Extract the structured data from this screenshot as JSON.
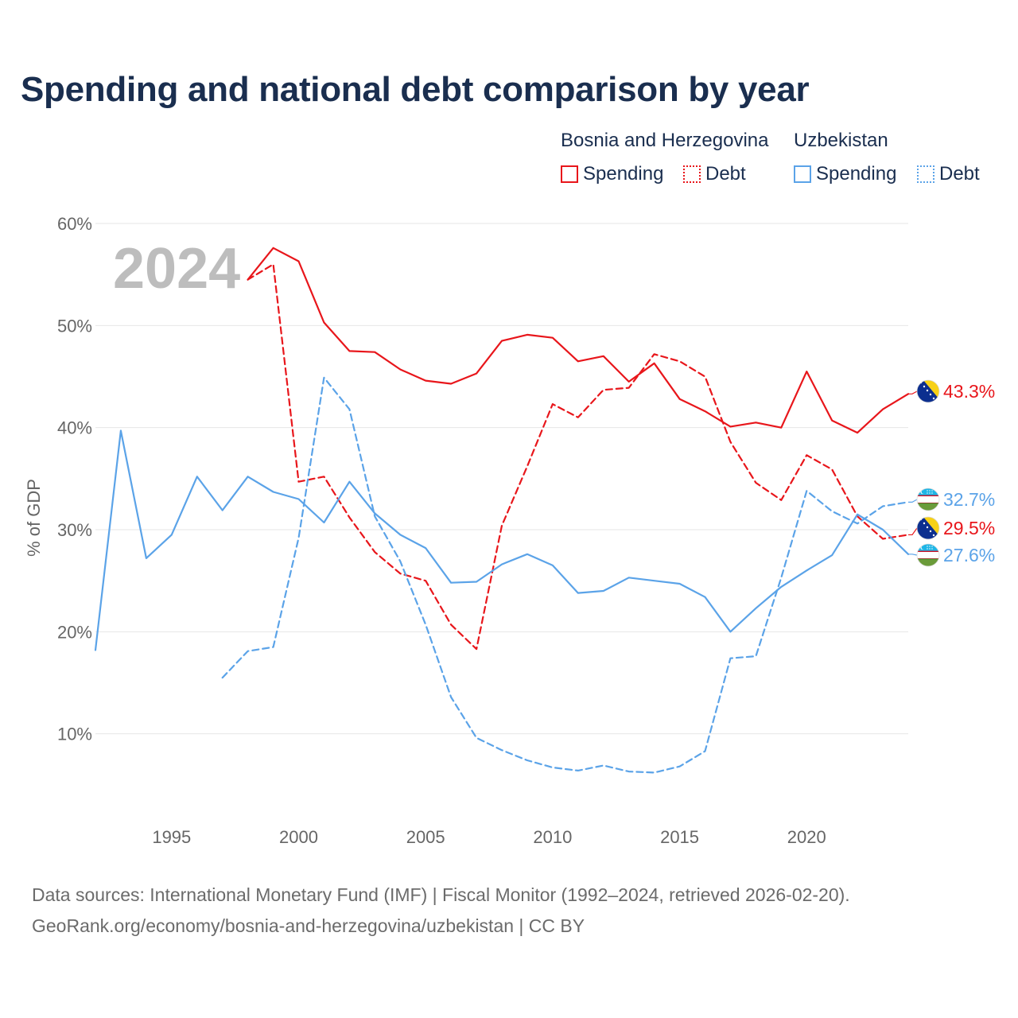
{
  "chart_data": {
    "type": "line",
    "title": "Spending and national debt comparison by year",
    "ylabel": "% of GDP",
    "xlabel": "",
    "year_watermark": "2024",
    "xlim": [
      1992,
      2024
    ],
    "ylim": [
      0,
      60
    ],
    "y_ticks": [
      10,
      20,
      30,
      40,
      50,
      60
    ],
    "y_tick_labels": [
      "10%",
      "20%",
      "30%",
      "40%",
      "50%",
      "60%"
    ],
    "x_ticks": [
      1995,
      2000,
      2005,
      2010,
      2015,
      2020
    ],
    "x_tick_labels": [
      "1995",
      "2000",
      "2005",
      "2010",
      "2015",
      "2020"
    ],
    "grid": true,
    "legend_position": "top-right",
    "legend": {
      "groups": [
        {
          "country": "Bosnia and Herzegovina",
          "items": [
            "Spending",
            "Debt"
          ]
        },
        {
          "country": "Uzbekistan",
          "items": [
            "Spending",
            "Debt"
          ]
        }
      ]
    },
    "colors": {
      "bih": "#e8161b",
      "uzb": "#5ba3e8"
    },
    "series": [
      {
        "name": "Bosnia and Herzegovina Spending",
        "key": "bih_spending",
        "style": "solid",
        "color": "#e8161b",
        "end_label": "43.3%",
        "x": [
          1998,
          1999,
          2000,
          2001,
          2002,
          2003,
          2004,
          2005,
          2006,
          2007,
          2008,
          2009,
          2010,
          2011,
          2012,
          2013,
          2014,
          2015,
          2016,
          2017,
          2018,
          2019,
          2020,
          2021,
          2022,
          2023,
          2024
        ],
        "y": [
          54.5,
          57.6,
          56.3,
          50.3,
          47.5,
          47.4,
          45.7,
          44.6,
          44.3,
          45.3,
          48.5,
          49.1,
          48.8,
          46.5,
          47.0,
          44.5,
          46.3,
          42.8,
          41.6,
          40.1,
          40.5,
          40.0,
          45.5,
          40.7,
          39.5,
          41.8,
          43.3
        ]
      },
      {
        "name": "Bosnia and Herzegovina Debt",
        "key": "bih_debt",
        "style": "dashed",
        "color": "#e8161b",
        "end_label": "29.5%",
        "x": [
          1998,
          1999,
          2000,
          2001,
          2002,
          2003,
          2004,
          2005,
          2006,
          2007,
          2008,
          2009,
          2010,
          2011,
          2012,
          2013,
          2014,
          2015,
          2016,
          2017,
          2018,
          2019,
          2020,
          2021,
          2022,
          2023,
          2024
        ],
        "y": [
          54.5,
          56.0,
          34.7,
          35.2,
          31.2,
          27.8,
          25.7,
          25.0,
          20.7,
          18.3,
          30.4,
          36.2,
          42.3,
          41.0,
          43.7,
          43.9,
          47.2,
          46.5,
          45.0,
          38.6,
          34.6,
          32.9,
          37.3,
          35.9,
          31.3,
          29.1,
          29.5
        ]
      },
      {
        "name": "Uzbekistan Spending",
        "key": "uzb_spending",
        "style": "solid",
        "color": "#5ba3e8",
        "end_label": "27.6%",
        "x": [
          1992,
          1993,
          1994,
          1995,
          1996,
          1997,
          1998,
          1999,
          2000,
          2001,
          2002,
          2003,
          2004,
          2005,
          2006,
          2007,
          2008,
          2009,
          2010,
          2011,
          2012,
          2013,
          2014,
          2015,
          2016,
          2017,
          2018,
          2019,
          2020,
          2021,
          2022,
          2023,
          2024
        ],
        "y": [
          18.2,
          39.7,
          27.2,
          29.5,
          35.2,
          31.9,
          35.2,
          33.7,
          33.0,
          30.7,
          34.7,
          31.6,
          29.5,
          28.2,
          24.8,
          24.9,
          26.6,
          27.6,
          26.5,
          23.8,
          24.0,
          25.3,
          25.0,
          24.7,
          23.4,
          20.0,
          22.3,
          24.4,
          26.0,
          27.5,
          31.5,
          30.0,
          27.6
        ]
      },
      {
        "name": "Uzbekistan Debt",
        "key": "uzb_debt",
        "style": "dashed",
        "color": "#5ba3e8",
        "end_label": "32.7%",
        "x": [
          1997,
          1998,
          1999,
          2000,
          2001,
          2002,
          2003,
          2004,
          2005,
          2006,
          2007,
          2008,
          2009,
          2010,
          2011,
          2012,
          2013,
          2014,
          2015,
          2016,
          2017,
          2018,
          2019,
          2020,
          2021,
          2022,
          2023,
          2024
        ],
        "y": [
          15.5,
          18.1,
          18.5,
          29.2,
          44.9,
          41.8,
          31.3,
          26.9,
          20.7,
          13.6,
          9.6,
          8.4,
          7.4,
          6.7,
          6.4,
          6.9,
          6.3,
          6.2,
          6.8,
          8.3,
          17.4,
          17.6,
          25.3,
          33.8,
          31.8,
          30.6,
          32.3,
          32.7
        ]
      }
    ]
  },
  "footer": {
    "line1": "Data sources: International Monetary Fund (IMF) | Fiscal Monitor (1992–2024, retrieved 2026-02-20).",
    "line2": "GeoRank.org/economy/bosnia-and-herzegovina/uzbekistan | CC BY"
  },
  "flags": {
    "bih": "bosnia-flag-icon",
    "uzb": "uzbekistan-flag-icon"
  }
}
